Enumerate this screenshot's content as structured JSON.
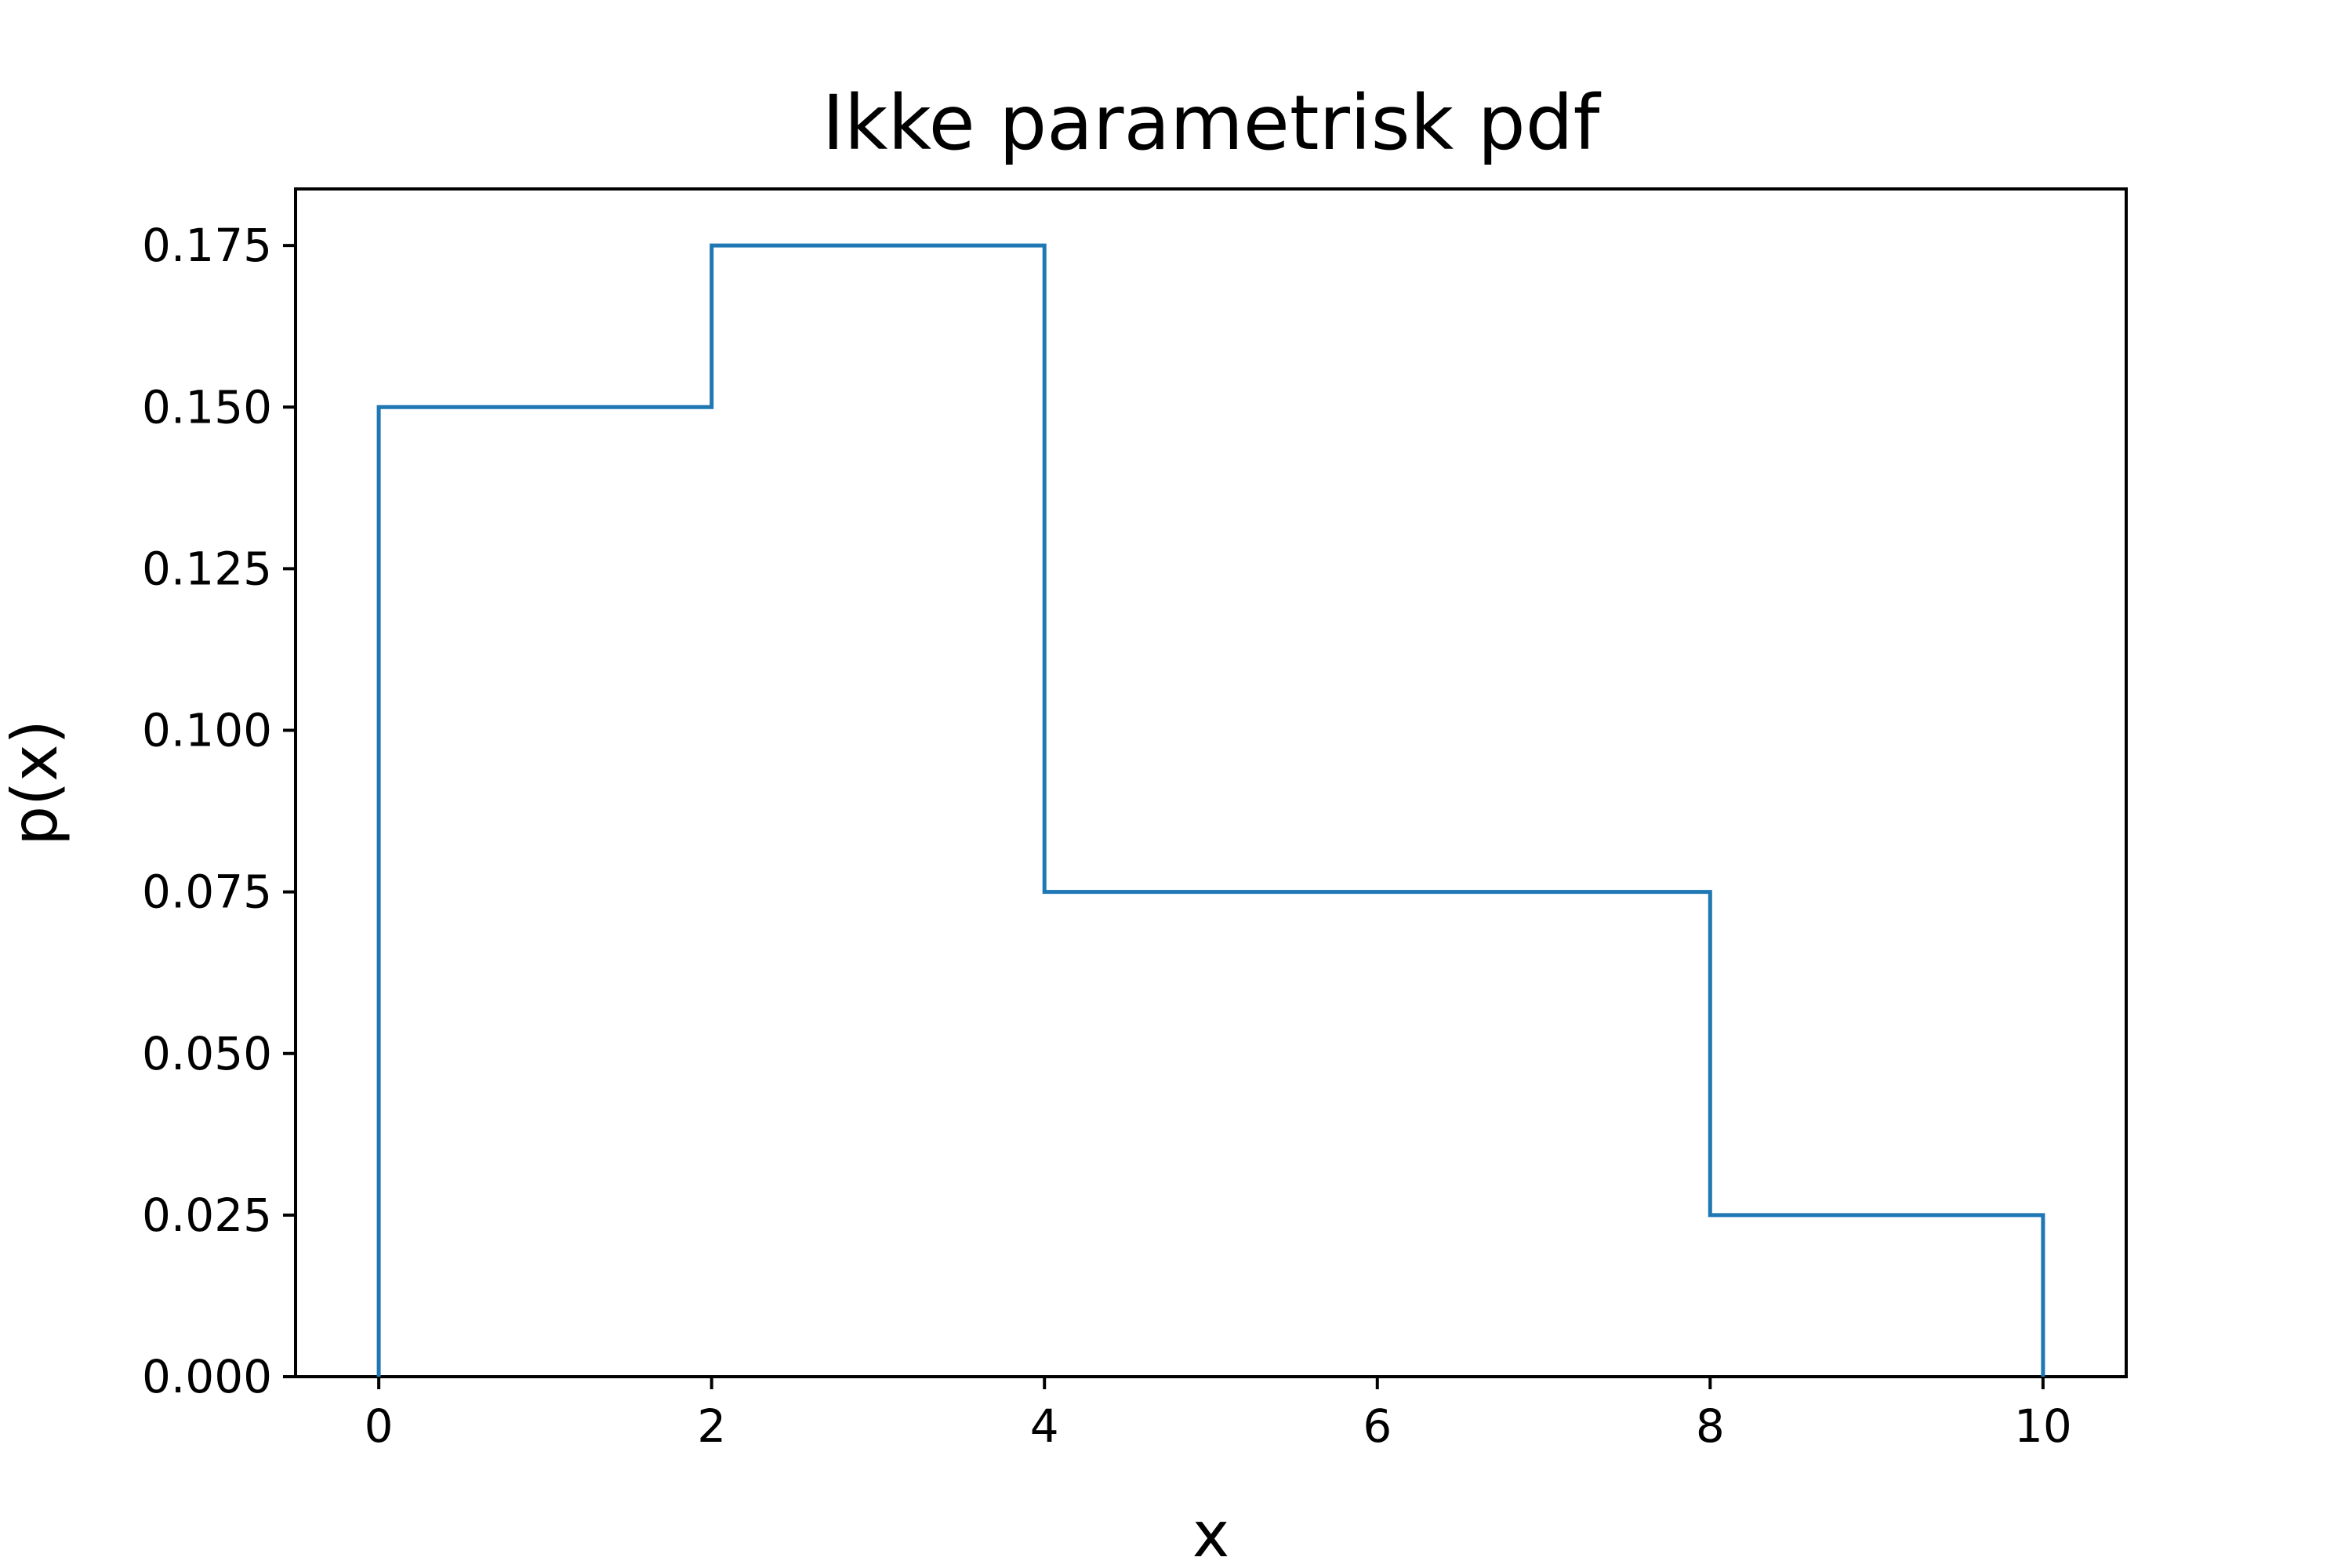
{
  "chart_data": {
    "type": "line",
    "drawstyle": "step",
    "title": "Ikke parametrisk pdf",
    "xlabel": "x",
    "ylabel": "p(x)",
    "xlim": [
      -0.5,
      10.5
    ],
    "ylim": [
      0,
      0.18375
    ],
    "xticks": [
      0,
      2,
      4,
      6,
      8,
      10
    ],
    "xtick_labels": [
      "0",
      "2",
      "4",
      "6",
      "8",
      "10"
    ],
    "yticks": [
      0,
      0.025,
      0.05,
      0.075,
      0.1,
      0.125,
      0.15,
      0.175
    ],
    "ytick_labels": [
      "0.000",
      "0.025",
      "0.050",
      "0.075",
      "0.100",
      "0.125",
      "0.150",
      "0.175"
    ],
    "grid": false,
    "series": [
      {
        "x": [
          0,
          0,
          2,
          2,
          4,
          4,
          8,
          8,
          10,
          10
        ],
        "y": [
          0,
          0.15,
          0.15,
          0.175,
          0.175,
          0.075,
          0.075,
          0.025,
          0.025,
          0
        ],
        "color": "#1f77b4"
      }
    ]
  }
}
